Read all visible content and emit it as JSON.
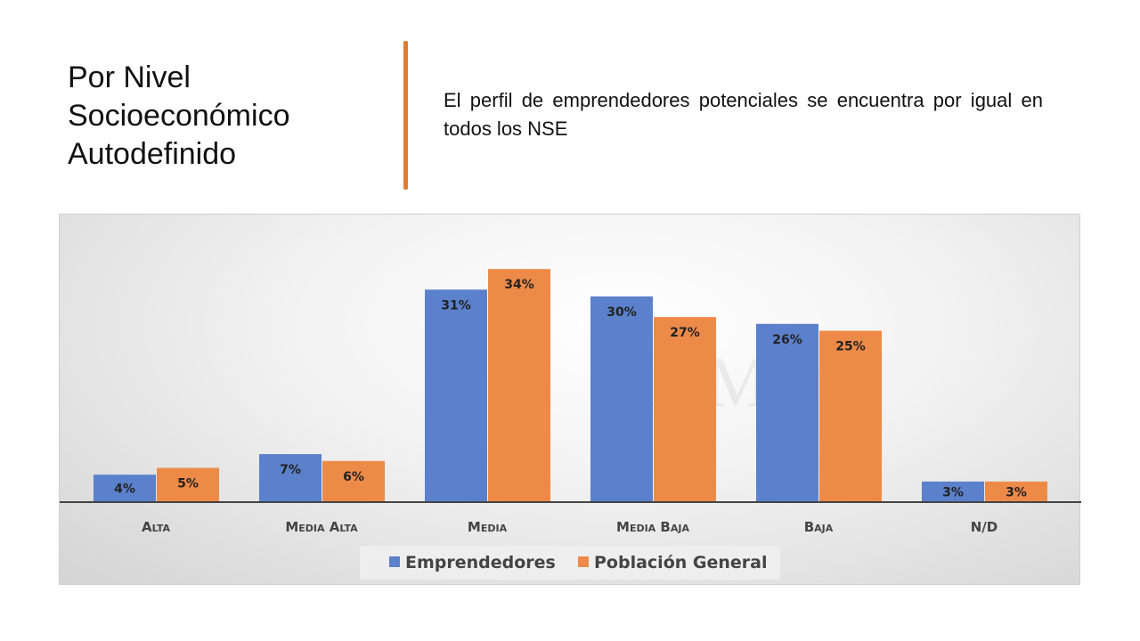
{
  "slide": {
    "title_lines": [
      "Por Nivel",
      "Socioeconómico",
      "Autodefinido"
    ],
    "subtitle": "El perfil de emprendedores potenciales se encuentra por igual en todos los NSE",
    "accent_color": "#e07b34",
    "watermark": "StatMark"
  },
  "chart_data": {
    "type": "bar",
    "categories": [
      "Alta",
      "Media Alta",
      "Media",
      "Media Baja",
      "Baja",
      "N/D"
    ],
    "series": [
      {
        "name": "Emprendedores",
        "values": [
          4,
          7,
          31,
          30,
          26,
          3
        ],
        "labels": [
          "4%",
          "7%",
          "31%",
          "30%",
          "26%",
          "3%"
        ],
        "color": "#5b80cc"
      },
      {
        "name": "Población General",
        "values": [
          5,
          6,
          34,
          27,
          25,
          3
        ],
        "labels": [
          "5%",
          "6%",
          "34%",
          "27%",
          "25%",
          "3%"
        ],
        "color": "#ee8a48"
      }
    ],
    "unit": "%",
    "grid": false,
    "legend": "bottom",
    "ylim": [
      0,
      40
    ]
  }
}
